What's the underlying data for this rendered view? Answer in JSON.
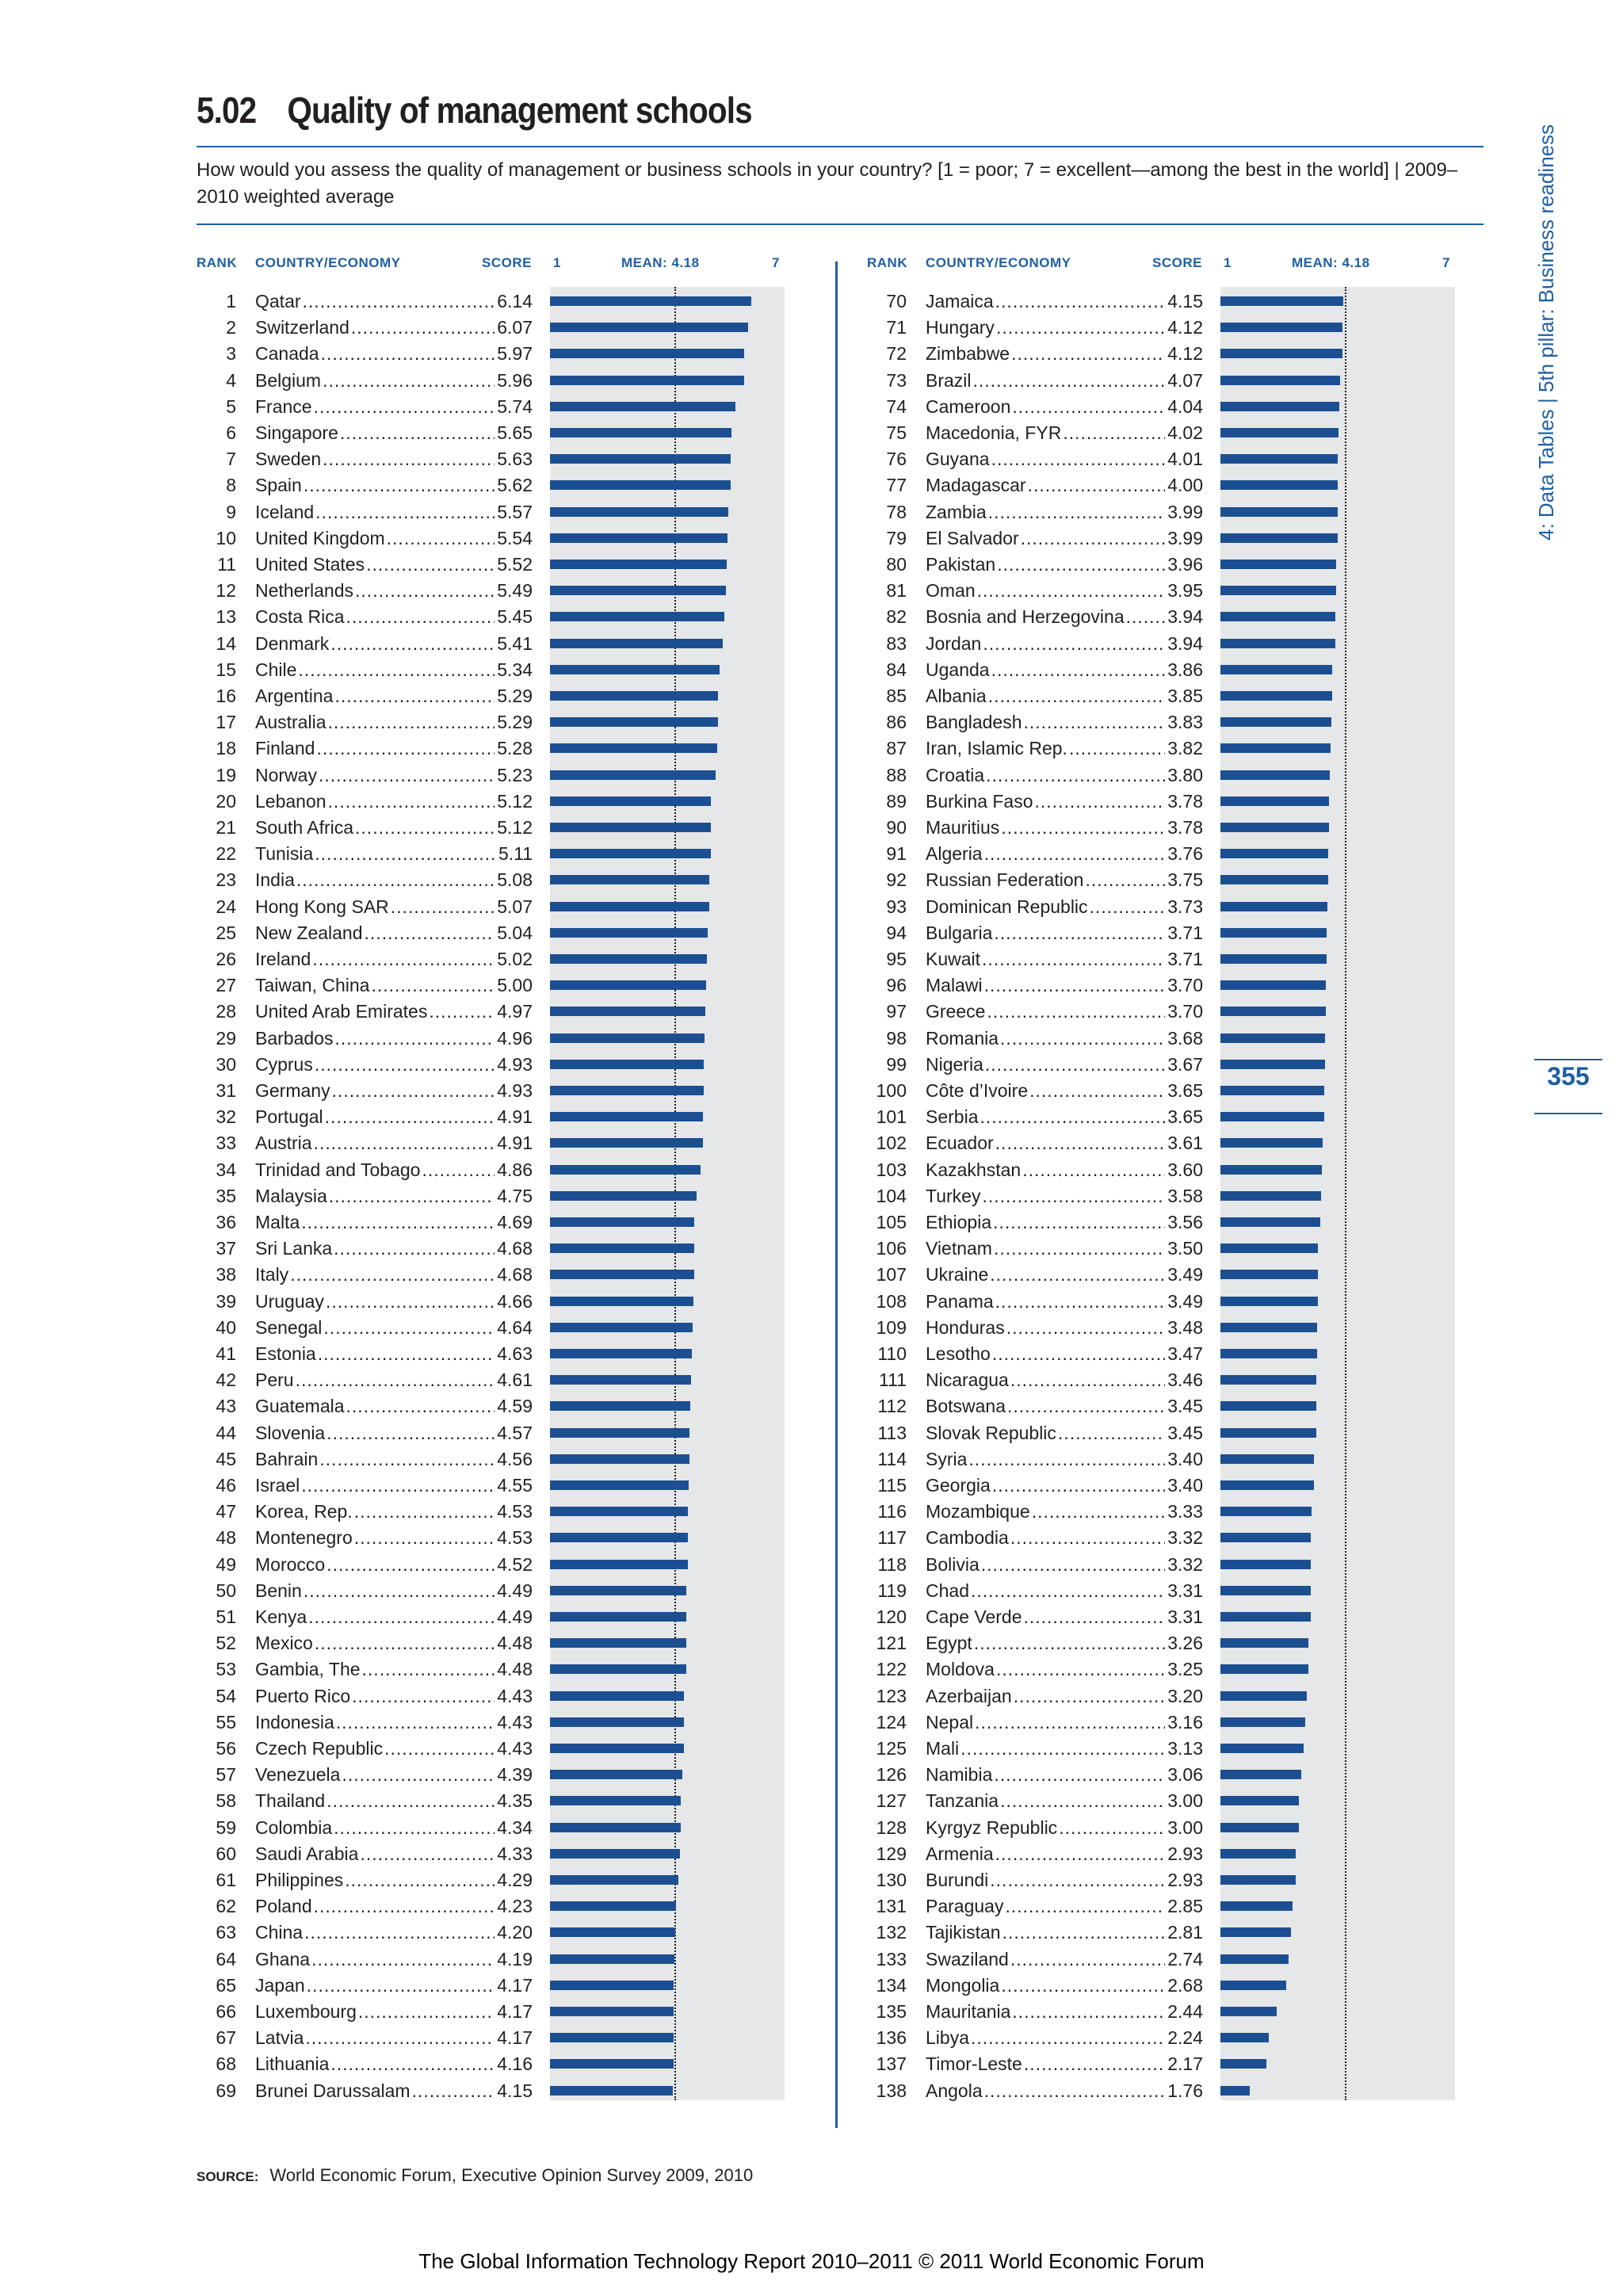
{
  "header": {
    "number": "5.02",
    "title": "Quality of management schools",
    "question": "How would you assess the quality of management or business schools in your country? [1 = poor; 7 = excellent—among the best in the world]  |  2009–2010 weighted average"
  },
  "columns": {
    "rank": "RANK",
    "country": "COUNTRY/ECONOMY",
    "score": "SCORE",
    "axis_min": "1",
    "mean": "MEAN: 4.18",
    "axis_max": "7"
  },
  "side_tab": "4: Data Tables  |  5th pillar: Business readiness",
  "page_number": "355",
  "source": {
    "label": "SOURCE:",
    "text": "World Economic Forum, Executive Opinion Survey 2009, 2010"
  },
  "footer": "The Global Information Technology Report 2010–2011 © 2011 World Economic Forum",
  "colors": {
    "bar": "#1c4f91",
    "accent": "#1f5fa3",
    "plot_bg": "#e6e7e8"
  },
  "chart_data": {
    "type": "bar",
    "orientation": "horizontal",
    "xlim": [
      1,
      7
    ],
    "mean": 4.18,
    "grid": false,
    "rows": [
      [
        "1",
        "Qatar",
        "6.14"
      ],
      [
        "2",
        "Switzerland",
        "6.07"
      ],
      [
        "3",
        "Canada",
        "5.97"
      ],
      [
        "4",
        "Belgium",
        "5.96"
      ],
      [
        "5",
        "France",
        "5.74"
      ],
      [
        "6",
        "Singapore",
        "5.65"
      ],
      [
        "7",
        "Sweden",
        "5.63"
      ],
      [
        "8",
        "Spain",
        "5.62"
      ],
      [
        "9",
        "Iceland",
        "5.57"
      ],
      [
        "10",
        "United Kingdom",
        "5.54"
      ],
      [
        "11",
        "United States",
        "5.52"
      ],
      [
        "12",
        "Netherlands",
        "5.49"
      ],
      [
        "13",
        "Costa Rica",
        "5.45"
      ],
      [
        "14",
        "Denmark",
        "5.41"
      ],
      [
        "15",
        "Chile",
        "5.34"
      ],
      [
        "16",
        "Argentina",
        "5.29"
      ],
      [
        "17",
        "Australia",
        "5.29"
      ],
      [
        "18",
        "Finland",
        "5.28"
      ],
      [
        "19",
        "Norway",
        "5.23"
      ],
      [
        "20",
        "Lebanon",
        "5.12"
      ],
      [
        "21",
        "South Africa",
        "5.12"
      ],
      [
        "22",
        "Tunisia",
        "5.11"
      ],
      [
        "23",
        "India",
        "5.08"
      ],
      [
        "24",
        "Hong Kong SAR",
        "5.07"
      ],
      [
        "25",
        "New Zealand",
        "5.04"
      ],
      [
        "26",
        "Ireland",
        "5.02"
      ],
      [
        "27",
        "Taiwan, China",
        "5.00"
      ],
      [
        "28",
        "United Arab Emirates",
        "4.97"
      ],
      [
        "29",
        "Barbados",
        "4.96"
      ],
      [
        "30",
        "Cyprus",
        "4.93"
      ],
      [
        "31",
        "Germany",
        "4.93"
      ],
      [
        "32",
        "Portugal",
        "4.91"
      ],
      [
        "33",
        "Austria",
        "4.91"
      ],
      [
        "34",
        "Trinidad and Tobago",
        "4.86"
      ],
      [
        "35",
        "Malaysia",
        "4.75"
      ],
      [
        "36",
        "Malta",
        "4.69"
      ],
      [
        "37",
        "Sri Lanka",
        "4.68"
      ],
      [
        "38",
        "Italy",
        "4.68"
      ],
      [
        "39",
        "Uruguay",
        "4.66"
      ],
      [
        "40",
        "Senegal",
        "4.64"
      ],
      [
        "41",
        "Estonia",
        "4.63"
      ],
      [
        "42",
        "Peru",
        "4.61"
      ],
      [
        "43",
        "Guatemala",
        "4.59"
      ],
      [
        "44",
        "Slovenia",
        "4.57"
      ],
      [
        "45",
        "Bahrain",
        "4.56"
      ],
      [
        "46",
        "Israel",
        "4.55"
      ],
      [
        "47",
        "Korea, Rep.",
        "4.53"
      ],
      [
        "48",
        "Montenegro",
        "4.53"
      ],
      [
        "49",
        "Morocco",
        "4.52"
      ],
      [
        "50",
        "Benin",
        "4.49"
      ],
      [
        "51",
        "Kenya",
        "4.49"
      ],
      [
        "52",
        "Mexico",
        "4.48"
      ],
      [
        "53",
        "Gambia, The",
        "4.48"
      ],
      [
        "54",
        "Puerto Rico",
        "4.43"
      ],
      [
        "55",
        "Indonesia",
        "4.43"
      ],
      [
        "56",
        "Czech Republic",
        "4.43"
      ],
      [
        "57",
        "Venezuela",
        "4.39"
      ],
      [
        "58",
        "Thailand",
        "4.35"
      ],
      [
        "59",
        "Colombia",
        "4.34"
      ],
      [
        "60",
        "Saudi Arabia",
        "4.33"
      ],
      [
        "61",
        "Philippines",
        "4.29"
      ],
      [
        "62",
        "Poland",
        "4.23"
      ],
      [
        "63",
        "China",
        "4.20"
      ],
      [
        "64",
        "Ghana",
        "4.19"
      ],
      [
        "65",
        "Japan",
        "4.17"
      ],
      [
        "66",
        "Luxembourg",
        "4.17"
      ],
      [
        "67",
        "Latvia",
        "4.17"
      ],
      [
        "68",
        "Lithuania",
        "4.16"
      ],
      [
        "69",
        "Brunei Darussalam",
        "4.15"
      ],
      [
        "70",
        "Jamaica",
        "4.15"
      ],
      [
        "71",
        "Hungary",
        "4.12"
      ],
      [
        "72",
        "Zimbabwe",
        "4.12"
      ],
      [
        "73",
        "Brazil",
        "4.07"
      ],
      [
        "74",
        "Cameroon",
        "4.04"
      ],
      [
        "75",
        "Macedonia, FYR",
        "4.02"
      ],
      [
        "76",
        "Guyana",
        "4.01"
      ],
      [
        "77",
        "Madagascar",
        "4.00"
      ],
      [
        "78",
        "Zambia",
        "3.99"
      ],
      [
        "79",
        "El Salvador",
        "3.99"
      ],
      [
        "80",
        "Pakistan",
        "3.96"
      ],
      [
        "81",
        "Oman",
        "3.95"
      ],
      [
        "82",
        "Bosnia and Herzegovina",
        "3.94"
      ],
      [
        "83",
        "Jordan",
        "3.94"
      ],
      [
        "84",
        "Uganda",
        "3.86"
      ],
      [
        "85",
        "Albania",
        "3.85"
      ],
      [
        "86",
        "Bangladesh",
        "3.83"
      ],
      [
        "87",
        "Iran, Islamic Rep.",
        "3.82"
      ],
      [
        "88",
        "Croatia",
        "3.80"
      ],
      [
        "89",
        "Burkina Faso",
        "3.78"
      ],
      [
        "90",
        "Mauritius",
        "3.78"
      ],
      [
        "91",
        "Algeria",
        "3.76"
      ],
      [
        "92",
        "Russian Federation",
        "3.75"
      ],
      [
        "93",
        "Dominican Republic",
        "3.73"
      ],
      [
        "94",
        "Bulgaria",
        "3.71"
      ],
      [
        "95",
        "Kuwait",
        "3.71"
      ],
      [
        "96",
        "Malawi",
        "3.70"
      ],
      [
        "97",
        "Greece",
        "3.70"
      ],
      [
        "98",
        "Romania",
        "3.68"
      ],
      [
        "99",
        "Nigeria",
        "3.67"
      ],
      [
        "100",
        "Côte d’Ivoire",
        "3.65"
      ],
      [
        "101",
        "Serbia",
        "3.65"
      ],
      [
        "102",
        "Ecuador",
        "3.61"
      ],
      [
        "103",
        "Kazakhstan",
        "3.60"
      ],
      [
        "104",
        "Turkey",
        "3.58"
      ],
      [
        "105",
        "Ethiopia",
        "3.56"
      ],
      [
        "106",
        "Vietnam",
        "3.50"
      ],
      [
        "107",
        "Ukraine",
        "3.49"
      ],
      [
        "108",
        "Panama",
        "3.49"
      ],
      [
        "109",
        "Honduras",
        "3.48"
      ],
      [
        "110",
        "Lesotho",
        "3.47"
      ],
      [
        "111",
        "Nicaragua",
        "3.46"
      ],
      [
        "112",
        "Botswana",
        "3.45"
      ],
      [
        "113",
        "Slovak Republic",
        "3.45"
      ],
      [
        "114",
        "Syria",
        "3.40"
      ],
      [
        "115",
        "Georgia",
        "3.40"
      ],
      [
        "116",
        "Mozambique",
        "3.33"
      ],
      [
        "117",
        "Cambodia",
        "3.32"
      ],
      [
        "118",
        "Bolivia",
        "3.32"
      ],
      [
        "119",
        "Chad",
        "3.31"
      ],
      [
        "120",
        "Cape Verde",
        "3.31"
      ],
      [
        "121",
        "Egypt",
        "3.26"
      ],
      [
        "122",
        "Moldova",
        "3.25"
      ],
      [
        "123",
        "Azerbaijan",
        "3.20"
      ],
      [
        "124",
        "Nepal",
        "3.16"
      ],
      [
        "125",
        "Mali",
        "3.13"
      ],
      [
        "126",
        "Namibia",
        "3.06"
      ],
      [
        "127",
        "Tanzania",
        "3.00"
      ],
      [
        "128",
        "Kyrgyz Republic",
        "3.00"
      ],
      [
        "129",
        "Armenia",
        "2.93"
      ],
      [
        "130",
        "Burundi",
        "2.93"
      ],
      [
        "131",
        "Paraguay",
        "2.85"
      ],
      [
        "132",
        "Tajikistan",
        "2.81"
      ],
      [
        "133",
        "Swaziland",
        "2.74"
      ],
      [
        "134",
        "Mongolia",
        "2.68"
      ],
      [
        "135",
        "Mauritania",
        "2.44"
      ],
      [
        "136",
        "Libya",
        "2.24"
      ],
      [
        "137",
        "Timor-Leste",
        "2.17"
      ],
      [
        "138",
        "Angola",
        "1.76"
      ]
    ]
  }
}
